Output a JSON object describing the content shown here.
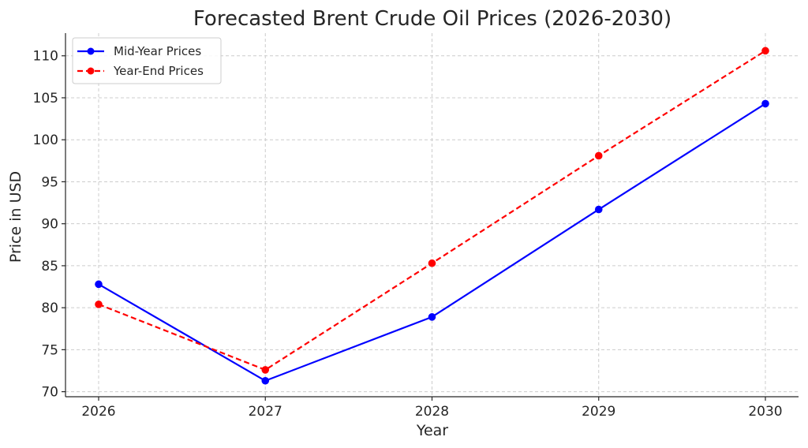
{
  "chart_data": {
    "type": "line",
    "title": "Forecasted Brent Crude Oil Prices (2026-2030)",
    "xlabel": "Year",
    "ylabel": "Price in USD",
    "categories": [
      "2026",
      "2027",
      "2028",
      "2029",
      "2030"
    ],
    "yticks": [
      "70",
      "75",
      "80",
      "85",
      "90",
      "95",
      "100",
      "105",
      "110"
    ],
    "ylim": [
      69.4,
      112.7
    ],
    "grid": true,
    "legend_position": "top-left",
    "series": [
      {
        "name": "Mid-Year Prices",
        "color": "#0000ff",
        "line_style": "solid",
        "marker": "circle",
        "values": [
          82.8,
          71.3,
          78.9,
          91.7,
          104.3
        ]
      },
      {
        "name": "Year-End Prices",
        "color": "#ff0000",
        "line_style": "dashed",
        "marker": "circle",
        "values": [
          80.4,
          72.6,
          85.3,
          98.1,
          110.6
        ]
      }
    ]
  }
}
